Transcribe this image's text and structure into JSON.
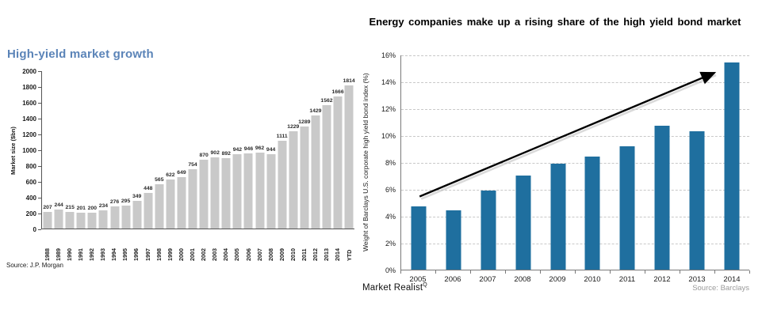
{
  "chart_data": [
    {
      "id": "high-yield-market-growth",
      "type": "bar",
      "title": "High-yield market growth",
      "title_color": "#5b84b8",
      "ylabel": "Market size ($bn)",
      "ylim": [
        0,
        2000
      ],
      "ytick_step": 200,
      "grid": false,
      "value_labels": true,
      "bar_color": "#c9c9c9",
      "categories": [
        "1988",
        "1989",
        "1990",
        "1991",
        "1992",
        "1993",
        "1994",
        "1995",
        "1996",
        "1997",
        "1998",
        "1999",
        "2000",
        "2001",
        "2002",
        "2003",
        "2004",
        "2005",
        "2006",
        "2007",
        "2008",
        "2009",
        "2010",
        "2011",
        "2012",
        "2013",
        "2014",
        "YTD"
      ],
      "values": [
        207,
        244,
        215,
        201,
        200,
        234,
        276,
        295,
        349,
        448,
        565,
        622,
        649,
        754,
        870,
        902,
        892,
        942,
        946,
        962,
        944,
        1111,
        1229,
        1289,
        1429,
        1562,
        1666,
        1814
      ],
      "source": "Source: J.P. Morgan"
    },
    {
      "id": "energy-share-of-high-yield-bond-market",
      "type": "bar",
      "title": "Energy companies make up a rising share of the high yield bond market",
      "ylabel": "Weight of Barclays U.S. corporate high yield bond index (%)",
      "ylim": [
        0,
        16
      ],
      "ytick_step": 2,
      "ytick_suffix": "%",
      "grid": true,
      "gridline_style": "dashed",
      "value_labels": false,
      "bar_color": "#1f6f9f",
      "categories": [
        "2005",
        "2006",
        "2007",
        "2008",
        "2009",
        "2010",
        "2011",
        "2012",
        "2013",
        "2014"
      ],
      "values": [
        4.7,
        4.4,
        5.9,
        7.0,
        7.9,
        8.4,
        9.2,
        10.7,
        10.3,
        15.4
      ],
      "trend_arrow": {
        "x1_frac": 0.055,
        "y1_value": 5.5,
        "x2_frac": 0.9,
        "y2_value": 14.7
      },
      "watermark": "Market Realist",
      "watermark_mark": "Q",
      "source": "Source: Barclays"
    }
  ]
}
